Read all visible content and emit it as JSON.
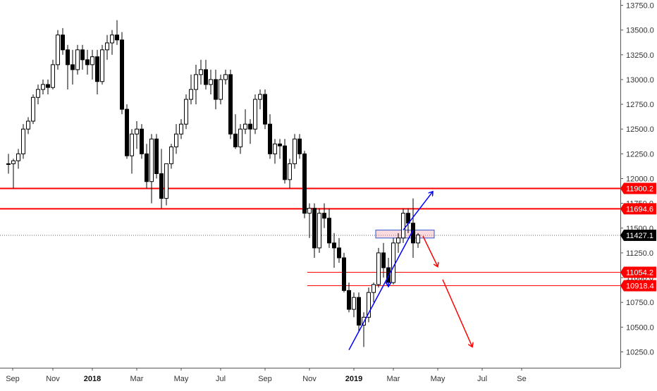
{
  "chart_data": {
    "type": "candlestick",
    "y_axis": {
      "min": 10000,
      "max": 13800,
      "ticks": [
        "13750.0",
        "13500.0",
        "13250.0",
        "13000.0",
        "12750.0",
        "12500.0",
        "12250.0",
        "12000.0",
        "11750.0",
        "11500.0",
        "11250.0",
        "11000.0",
        "10750.0",
        "10500.0",
        "10250.0"
      ],
      "position": "right"
    },
    "x_axis": {
      "ticks": [
        {
          "label": "Sep",
          "week": 0,
          "bold": false
        },
        {
          "label": "Nov",
          "week": 9,
          "bold": false
        },
        {
          "label": "2018",
          "week": 17,
          "bold": true
        },
        {
          "label": "Mar",
          "week": 26,
          "bold": false
        },
        {
          "label": "May",
          "week": 35,
          "bold": false
        },
        {
          "label": "Jul",
          "week": 43,
          "bold": false
        },
        {
          "label": "Sep",
          "week": 52,
          "bold": false
        },
        {
          "label": "Nov",
          "week": 61,
          "bold": false
        },
        {
          "label": "2019",
          "week": 70,
          "bold": true
        },
        {
          "label": "Mar",
          "week": 78,
          "bold": false
        },
        {
          "label": "May",
          "week": 87,
          "bold": false
        },
        {
          "label": "Jul",
          "week": 96,
          "bold": false
        },
        {
          "label": "Se",
          "week": 104,
          "bold": false
        }
      ]
    },
    "candles": [
      [
        12150,
        12250,
        12050,
        12150
      ],
      [
        12150,
        12200,
        11900,
        12180
      ],
      [
        12180,
        12300,
        12100,
        12250
      ],
      [
        12250,
        12550,
        12200,
        12500
      ],
      [
        12500,
        12620,
        12450,
        12580
      ],
      [
        12580,
        12850,
        12550,
        12820
      ],
      [
        12820,
        12950,
        12750,
        12900
      ],
      [
        12900,
        13000,
        12850,
        12950
      ],
      [
        12950,
        13000,
        12850,
        12920
      ],
      [
        12920,
        13200,
        12900,
        13150
      ],
      [
        13150,
        13500,
        13100,
        13450
      ],
      [
        13450,
        13520,
        13250,
        13300
      ],
      [
        13300,
        13350,
        12900,
        13150
      ],
      [
        13150,
        13300,
        12950,
        13100
      ],
      [
        13100,
        13350,
        13050,
        13300
      ],
      [
        13300,
        13350,
        13100,
        13200
      ],
      [
        13200,
        13300,
        13050,
        13150
      ],
      [
        13150,
        13300,
        13000,
        13230
      ],
      [
        13230,
        13300,
        12850,
        12980
      ],
      [
        12980,
        13350,
        12950,
        13300
      ],
      [
        13300,
        13450,
        13200,
        13370
      ],
      [
        13370,
        13500,
        13250,
        13450
      ],
      [
        13450,
        13600,
        13350,
        13400
      ],
      [
        13400,
        13480,
        12650,
        12700
      ],
      [
        12700,
        12750,
        12200,
        12230
      ],
      [
        12230,
        12500,
        12050,
        12450
      ],
      [
        12450,
        12580,
        12300,
        12500
      ],
      [
        12500,
        12550,
        12200,
        12250
      ],
      [
        12250,
        12350,
        11900,
        11970
      ],
      [
        11970,
        12450,
        11750,
        12400
      ],
      [
        12400,
        12450,
        12000,
        12050
      ],
      [
        12050,
        12300,
        11700,
        11800
      ],
      [
        11800,
        12150,
        11730,
        12150
      ],
      [
        12150,
        12350,
        12100,
        12320
      ],
      [
        12320,
        12550,
        12250,
        12450
      ],
      [
        12450,
        12600,
        12400,
        12550
      ],
      [
        12550,
        12850,
        12500,
        12800
      ],
      [
        12800,
        13050,
        12750,
        12900
      ],
      [
        12900,
        13150,
        12750,
        13050
      ],
      [
        13050,
        13200,
        12950,
        13100
      ],
      [
        13100,
        13200,
        12900,
        12950
      ],
      [
        12950,
        13100,
        12850,
        13000
      ],
      [
        13000,
        13100,
        12700,
        12800
      ],
      [
        12800,
        13050,
        12750,
        13000
      ],
      [
        13000,
        13100,
        12950,
        13050
      ],
      [
        13050,
        13100,
        12400,
        12450
      ],
      [
        12450,
        12650,
        12300,
        12320
      ],
      [
        12320,
        12550,
        12250,
        12500
      ],
      [
        12500,
        12700,
        12450,
        12550
      ],
      [
        12550,
        12600,
        12350,
        12500
      ],
      [
        12500,
        12850,
        12450,
        12800
      ],
      [
        12800,
        12900,
        12700,
        12850
      ],
      [
        12850,
        12900,
        12500,
        12550
      ],
      [
        12550,
        12650,
        12200,
        12250
      ],
      [
        12250,
        12400,
        12150,
        12350
      ],
      [
        12350,
        12400,
        12200,
        12330
      ],
      [
        12330,
        12400,
        11950,
        11990
      ],
      [
        11990,
        12200,
        11900,
        12150
      ],
      [
        12150,
        12450,
        12100,
        12400
      ],
      [
        12400,
        12450,
        12200,
        12250
      ],
      [
        12250,
        12280,
        11600,
        11650
      ],
      [
        11650,
        11750,
        11400,
        11700
      ],
      [
        11700,
        11750,
        11200,
        11300
      ],
      [
        11300,
        11700,
        11250,
        11650
      ],
      [
        11650,
        11750,
        11500,
        11600
      ],
      [
        11600,
        11700,
        11300,
        11350
      ],
      [
        11350,
        11450,
        11100,
        11300
      ],
      [
        11300,
        11400,
        11150,
        11200
      ],
      [
        11200,
        11250,
        10850,
        10870
      ],
      [
        10870,
        10950,
        10650,
        10680
      ],
      [
        10680,
        10850,
        10600,
        10800
      ],
      [
        10800,
        10850,
        10450,
        10520
      ],
      [
        10520,
        10650,
        10300,
        10600
      ],
      [
        10600,
        10900,
        10550,
        10850
      ],
      [
        10850,
        10950,
        10750,
        10930
      ],
      [
        10930,
        11300,
        10900,
        11250
      ],
      [
        11250,
        11350,
        11000,
        11100
      ],
      [
        11100,
        11200,
        10900,
        10950
      ],
      [
        10950,
        11400,
        10930,
        11350
      ],
      [
        11350,
        11450,
        11250,
        11400
      ],
      [
        11400,
        11700,
        11350,
        11650
      ],
      [
        11650,
        11700,
        11450,
        11550
      ],
      [
        11550,
        11800,
        11200,
        11350
      ],
      [
        11350,
        11450,
        11300,
        11430
      ]
    ],
    "horizontal_levels": [
      {
        "value": 11900.2,
        "label": "11900.2",
        "color": "#ff0000",
        "style": "thick",
        "x_start_week": 0
      },
      {
        "value": 11694.6,
        "label": "11694.6",
        "color": "#ff0000",
        "style": "thick",
        "x_start_week": 0
      },
      {
        "value": 11054.2,
        "label": "11054.2",
        "color": "#ff0000",
        "style": "thin",
        "x_start_week": 61
      },
      {
        "value": 10918.4,
        "label": "10918.4",
        "color": "#ff0000",
        "style": "thin",
        "x_start_week": 61
      }
    ],
    "current_price": {
      "value": 11427.1,
      "label": "11427.1",
      "color": "#000000"
    },
    "zone_box": {
      "week_start": 75,
      "week_end": 86,
      "price_low": 11400,
      "price_high": 11480
    },
    "trend_line": {
      "from": {
        "week": 69,
        "price": 10270
      },
      "to": {
        "week": 82,
        "price": 11480
      },
      "color": "#0000ff"
    },
    "arrows": [
      {
        "from": {
          "week": 80,
          "price": 11480
        },
        "to": {
          "week": 86,
          "price": 11870
        },
        "color": "#0000ff"
      },
      {
        "from": {
          "week": 77,
          "price": 10960
        },
        "to": {
          "week": 77,
          "price": 10910
        },
        "color": "#0000ff"
      },
      {
        "from": {
          "week": 84,
          "price": 11420
        },
        "to": {
          "week": 87,
          "price": 11110
        },
        "color": "#ff0000"
      },
      {
        "from": {
          "week": 88,
          "price": 10980
        },
        "to": {
          "week": 94,
          "price": 10300
        },
        "color": "#ff0000"
      }
    ]
  }
}
